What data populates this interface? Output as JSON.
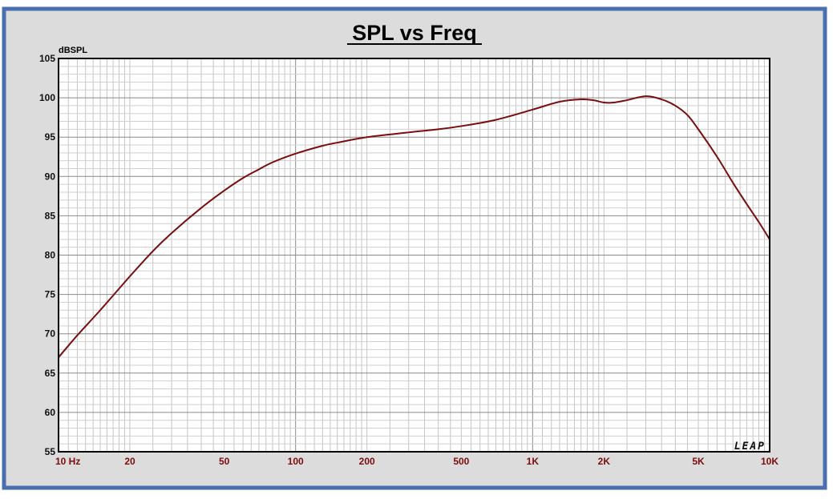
{
  "chart_data": {
    "type": "line",
    "title": "SPL vs Freq",
    "ylabel": "dBSPL",
    "xscale": "log",
    "xlim": [
      10,
      10000
    ],
    "ylim": [
      55,
      105
    ],
    "grid": true,
    "y_ticks": [
      55,
      60,
      65,
      70,
      75,
      80,
      85,
      90,
      95,
      100,
      105
    ],
    "x_ticks": [
      {
        "value": 10,
        "label": "10 Hz"
      },
      {
        "value": 20,
        "label": "20"
      },
      {
        "value": 50,
        "label": "50"
      },
      {
        "value": 100,
        "label": "100"
      },
      {
        "value": 200,
        "label": "200"
      },
      {
        "value": 500,
        "label": "500"
      },
      {
        "value": 1000,
        "label": "1K"
      },
      {
        "value": 2000,
        "label": "2K"
      },
      {
        "value": 5000,
        "label": "5K"
      },
      {
        "value": 10000,
        "label": "10K"
      }
    ],
    "series": [
      {
        "color": "#7a0d0d",
        "x": [
          10,
          12,
          15,
          20,
          25,
          30,
          40,
          50,
          60,
          70,
          80,
          100,
          130,
          150,
          200,
          300,
          400,
          500,
          700,
          1000,
          1300,
          1600,
          1800,
          2000,
          2200,
          2500,
          3000,
          3500,
          4000,
          4500,
          5000,
          6000,
          7000,
          8000,
          9000,
          10000
        ],
        "y": [
          67.0,
          69.8,
          73.0,
          77.3,
          80.5,
          82.8,
          86.0,
          88.2,
          89.8,
          90.9,
          91.8,
          92.9,
          93.9,
          94.3,
          95.0,
          95.6,
          96.0,
          96.4,
          97.2,
          98.5,
          99.5,
          99.8,
          99.7,
          99.4,
          99.4,
          99.7,
          100.2,
          99.8,
          99.0,
          97.8,
          96.0,
          92.5,
          89.2,
          86.5,
          84.2,
          82.0
        ]
      }
    ],
    "watermark": "LEAP"
  }
}
